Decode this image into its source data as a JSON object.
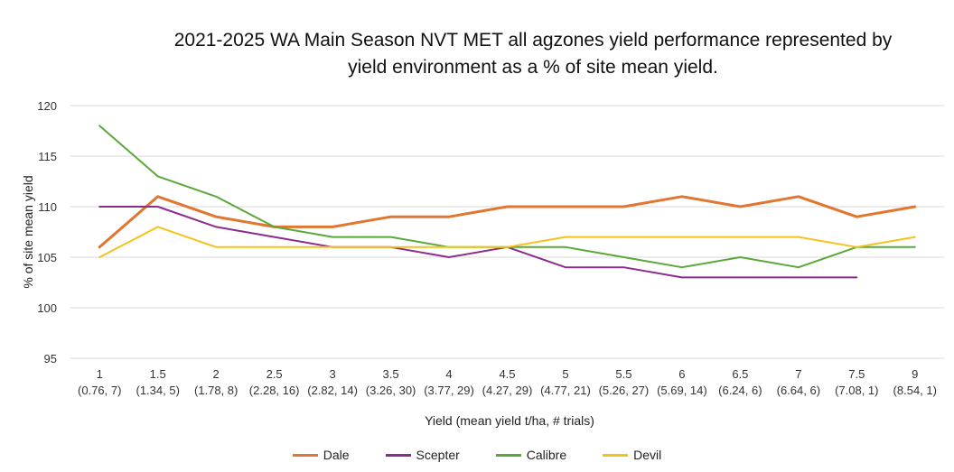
{
  "chart_data": {
    "type": "line",
    "title_lines": [
      "2021-2025 WA Main Season NVT MET all agzones yield performance represented by",
      "yield environment as a % of site mean yield."
    ],
    "xlabel": "Yield (mean yield t/ha, # trials)",
    "ylabel": "% of site mean yield",
    "ylim": [
      95,
      120
    ],
    "yticks": [
      95,
      100,
      105,
      110,
      115,
      120
    ],
    "grid": true,
    "legend_position": "bottom",
    "categories": [
      {
        "top": "1",
        "bottom": "(0.76, 7)"
      },
      {
        "top": "1.5",
        "bottom": "(1.34, 5)"
      },
      {
        "top": "2",
        "bottom": "(1.78, 8)"
      },
      {
        "top": "2.5",
        "bottom": "(2.28, 16)"
      },
      {
        "top": "3",
        "bottom": "(2.82, 14)"
      },
      {
        "top": "3.5",
        "bottom": "(3.26, 30)"
      },
      {
        "top": "4",
        "bottom": "(3.77, 29)"
      },
      {
        "top": "4.5",
        "bottom": "(4.27, 29)"
      },
      {
        "top": "5",
        "bottom": "(4.77, 21)"
      },
      {
        "top": "5.5",
        "bottom": "(5.26, 27)"
      },
      {
        "top": "6",
        "bottom": "(5.69, 14)"
      },
      {
        "top": "6.5",
        "bottom": "(6.24, 6)"
      },
      {
        "top": "7",
        "bottom": "(6.64, 6)"
      },
      {
        "top": "7.5",
        "bottom": "(7.08, 1)"
      },
      {
        "top": "9",
        "bottom": "(8.54, 1)"
      }
    ],
    "series": [
      {
        "name": "Dale",
        "color": "#e2762f",
        "stroke": 3,
        "values": [
          106,
          111,
          109,
          108,
          108,
          109,
          109,
          110,
          110,
          110,
          111,
          110,
          111,
          109,
          110
        ]
      },
      {
        "name": "Scepter",
        "color": "#8e2b8f",
        "stroke": 2,
        "values": [
          110,
          110,
          108,
          107,
          106,
          106,
          105,
          106,
          104,
          104,
          103,
          103,
          103,
          103,
          null
        ]
      },
      {
        "name": "Calibre",
        "color": "#5aa83a",
        "stroke": 2,
        "values": [
          118,
          113,
          111,
          108,
          107,
          107,
          106,
          106,
          106,
          105,
          104,
          105,
          104,
          106,
          106
        ]
      },
      {
        "name": "Devil",
        "color": "#f5c21b",
        "stroke": 2,
        "values": [
          105,
          108,
          106,
          106,
          106,
          106,
          106,
          106,
          107,
          107,
          107,
          107,
          107,
          106,
          107
        ]
      }
    ]
  }
}
